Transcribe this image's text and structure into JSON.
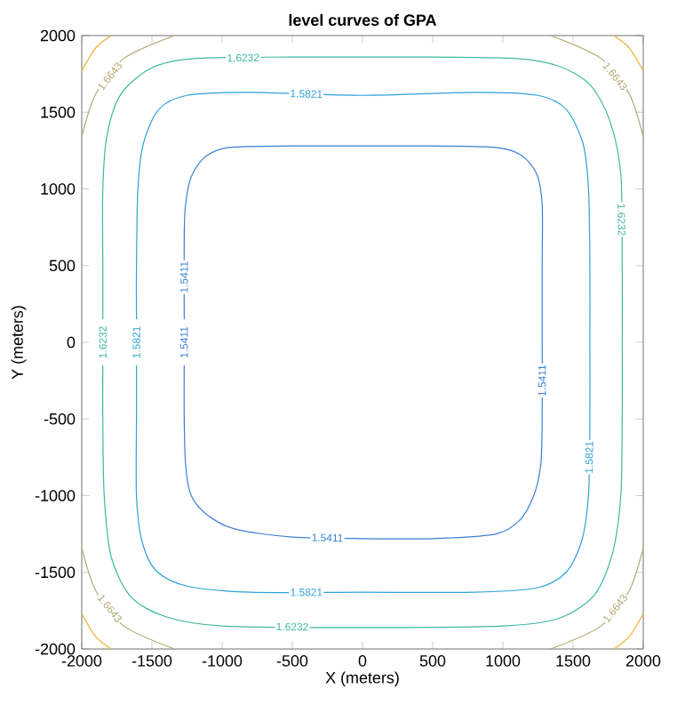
{
  "chart_data": {
    "type": "line",
    "title": "level curves of GPA",
    "xlabel": "X (meters)",
    "ylabel": "Y (meters)",
    "xlim": [
      -2000,
      2000
    ],
    "ylim": [
      -2000,
      2000
    ],
    "xticks": [
      -2000,
      -1500,
      -1000,
      -500,
      0,
      500,
      1000,
      1500,
      2000
    ],
    "yticks": [
      -2000,
      -1500,
      -1000,
      -500,
      0,
      500,
      1000,
      1500,
      2000
    ],
    "series": [
      {
        "name": "1.5411",
        "color": "#3a7fd6",
        "x": [
          -1270,
          -1270,
          -1260,
          -1220,
          -1100,
          -900,
          -500,
          0,
          500,
          950,
          1120,
          1220,
          1270,
          1280,
          1280,
          1280,
          1280,
          1240,
          1130,
          950,
          500,
          0,
          -500,
          -950,
          -1120,
          -1220,
          -1260,
          -1270,
          -1270
        ],
        "values": [
          -150,
          -500,
          -800,
          -1000,
          -1130,
          -1220,
          -1270,
          -1280,
          -1280,
          -1250,
          -1160,
          -1000,
          -800,
          -500,
          0,
          500,
          900,
          1100,
          1220,
          1270,
          1280,
          1280,
          1280,
          1270,
          1210,
          1080,
          900,
          700,
          150
        ]
      },
      {
        "name": "1.5821",
        "color": "#2fa0d8",
        "x": [
          -1610,
          -1610,
          -1610,
          -1570,
          -1470,
          -1250,
          -800,
          0,
          800,
          1250,
          1450,
          1560,
          1610,
          1620,
          1620,
          1620,
          1610,
          1570,
          1450,
          1250,
          800,
          0,
          -800,
          -1250,
          -1450,
          -1560,
          -1600,
          -1610,
          -1610
        ],
        "values": [
          -150,
          -500,
          -1000,
          -1300,
          -1490,
          -1590,
          -1630,
          -1630,
          -1630,
          -1600,
          -1500,
          -1300,
          -1000,
          -500,
          0,
          500,
          1000,
          1300,
          1520,
          1610,
          1630,
          1610,
          1630,
          1610,
          1520,
          1300,
          1000,
          500,
          150
        ]
      },
      {
        "name": "1.6232",
        "color": "#3cb8a0",
        "x": [
          -1850,
          -1850,
          -1840,
          -1790,
          -1650,
          -1400,
          -1000,
          0,
          1000,
          1400,
          1650,
          1780,
          1840,
          1850,
          1850,
          1850,
          1840,
          1760,
          1620,
          1400,
          1100,
          500,
          0,
          -500,
          -1200,
          -1500,
          -1720,
          -1820,
          -1850,
          -1850,
          -1850
        ],
        "values": [
          -150,
          -500,
          -1000,
          -1400,
          -1660,
          -1790,
          -1850,
          -1860,
          -1850,
          -1800,
          -1650,
          -1380,
          -1000,
          -500,
          0,
          500,
          1100,
          1450,
          1680,
          1800,
          1850,
          1860,
          1860,
          1860,
          1850,
          1790,
          1620,
          1350,
          1000,
          500,
          150
        ]
      },
      {
        "name": "1.6643",
        "color": "#b0a870",
        "x": [
          -2000,
          -1900,
          -1700,
          -1340
        ],
        "values": [
          1340,
          1620,
          1850,
          2000
        ]
      },
      {
        "name": "1.6643",
        "color": "#b0a870",
        "x": [
          1340,
          1700,
          1900,
          2000
        ],
        "values": [
          2000,
          1850,
          1620,
          1340
        ]
      },
      {
        "name": "1.6643",
        "color": "#b0a870",
        "x": [
          1340,
          1700,
          1900,
          2000
        ],
        "values": [
          -2000,
          -1850,
          -1620,
          -1340
        ]
      },
      {
        "name": "1.6643",
        "color": "#b0a870",
        "x": [
          -2000,
          -1900,
          -1700,
          -1340
        ],
        "values": [
          -1340,
          -1620,
          -1850,
          -2000
        ]
      },
      {
        "color": "#f0b030",
        "x": [
          -2000,
          -1900,
          -1790
        ],
        "values": [
          1770,
          1920,
          2000
        ]
      },
      {
        "color": "#f0b030",
        "x": [
          1790,
          1900,
          2000
        ],
        "values": [
          2000,
          1920,
          1770
        ]
      },
      {
        "color": "#f0b030",
        "x": [
          1790,
          1900,
          2000
        ],
        "values": [
          -2000,
          -1920,
          -1770
        ]
      },
      {
        "color": "#f0b030",
        "x": [
          -2000,
          -1900,
          -1790
        ],
        "values": [
          -1770,
          -1920,
          -2000
        ]
      }
    ]
  }
}
